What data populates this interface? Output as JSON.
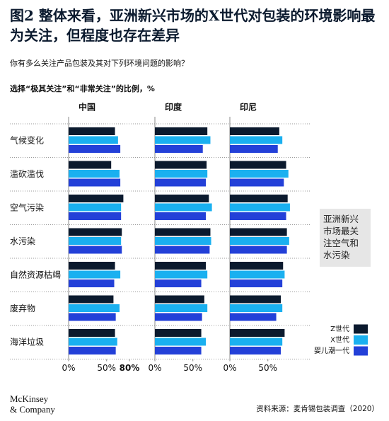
{
  "chart_data": {
    "type": "bar",
    "orientation": "horizontal",
    "title": "图2 整体来看，亚洲新兴市场的X世代对包装的环境影响最为关注，但程度也存在差异",
    "subtitle": "你有多么关注产品包装及其对下列环境问题的影响？",
    "axis_label": "选择“极其关注”和“非常关注”的比例，%",
    "categories": [
      "气候变化",
      "滥砍滥伐",
      "空气污染",
      "水污染",
      "自然资源枯竭",
      "废弃物",
      "海洋垃圾"
    ],
    "series": [
      {
        "name": "Z世代",
        "color": "#0b1a2e"
      },
      {
        "name": "X世代",
        "color": "#1ab0f0"
      },
      {
        "name": "婴儿潮一代",
        "color": "#2340d8"
      }
    ],
    "xlim": [
      0,
      80
    ],
    "panels": [
      {
        "name": "中国",
        "xticks": [
          {
            "value": 0,
            "label": "0%"
          },
          {
            "value": 50,
            "label": "50%"
          },
          {
            "value": 80,
            "label": "80%"
          }
        ],
        "series": [
          {
            "values": [
              61,
              56,
              72,
              70,
              61,
              59,
              61
            ]
          },
          {
            "values": [
              65,
              67,
              69,
              69,
              68,
              67,
              64
            ]
          },
          {
            "values": [
              68,
              68,
              69,
              70,
              60,
              62,
              62
            ]
          }
        ]
      },
      {
        "name": "印度",
        "xticks": [
          {
            "value": 0,
            "label": "0%"
          },
          {
            "value": 50,
            "label": "50%"
          }
        ],
        "series": [
          {
            "values": [
              69,
              68,
              71,
              73,
              67,
              65,
              61
            ]
          },
          {
            "values": [
              73,
              69,
              75,
              74,
              69,
              69,
              67
            ]
          },
          {
            "values": [
              63,
              67,
              67,
              72,
              61,
              62,
              61
            ]
          }
        ]
      },
      {
        "name": "印尼",
        "xticks": [
          {
            "value": 0,
            "label": "0%"
          },
          {
            "value": 50,
            "label": "50%"
          }
        ],
        "series": [
          {
            "values": [
              65,
              74,
              76,
              75,
              70,
              67,
              72
            ]
          },
          {
            "values": [
              69,
              77,
              79,
              78,
              72,
              69,
              69
            ]
          },
          {
            "values": [
              63,
              71,
              74,
              75,
              69,
              61,
              67
            ]
          }
        ]
      }
    ],
    "annotation": "亚洲新兴市场最关注空气和水污染",
    "source": "资料来源：麦肯锡包装调查（2020）",
    "logo": [
      "McKinsey",
      "& Company"
    ]
  }
}
